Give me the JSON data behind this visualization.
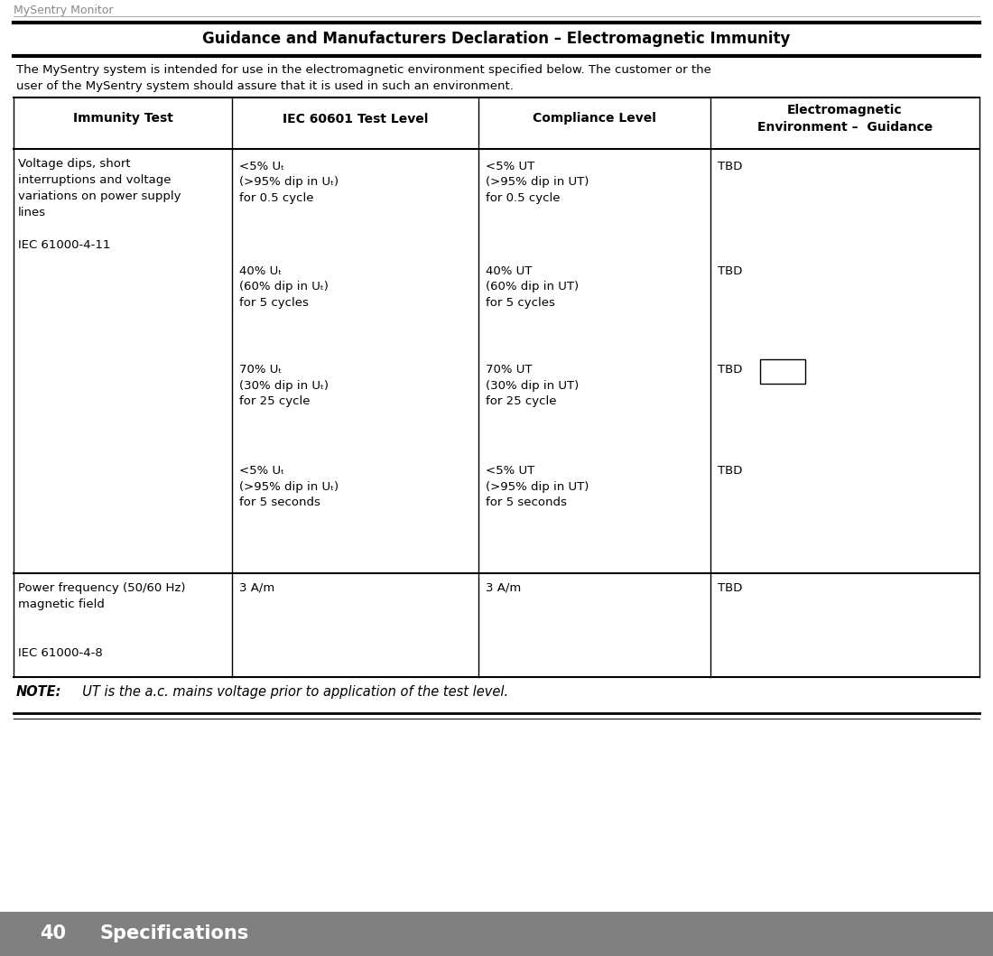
{
  "page_title": "MySentry Monitor",
  "section_title": "Guidance and Manufacturers Declaration – Electromagnetic Immunity",
  "intro_text": "The MySentry system is intended for use in the electromagnetic environment specified below. The customer or the\nuser of the MySentry system should assure that it is used in such an environment.",
  "col_headers": [
    "Immunity Test",
    "IEC 60601 Test Level",
    "Compliance Level",
    "Electromagnetic\nEnvironment –  Guidance"
  ],
  "rows_r1_col0": "Voltage dips, short\ninterruptions and voltage\nvariations on power supply\nlines\n\nIEC 61000-4-11",
  "rows_r1_col1": [
    "<5% UT\n(>95% dip in UT)\nfor 0.5 cycle",
    "40% UT\n(60% dip in UT)\nfor 5 cycles",
    "70% UT\n(30% dip in UT)\nfor 25 cycle",
    "<5% UT\n(>95% dip in UT)\nfor 5 seconds"
  ],
  "rows_r1_col2": [
    "<5% UT\n(>95% dip in UT)\nfor 0.5 cycle",
    "40% UT\n(60% dip in UT)\nfor 5 cycles",
    "70% UT\n(30% dip in UT)\nfor 25 cycle",
    "<5% UT\n(>95% dip in UT)\nfor 5 seconds"
  ],
  "rows_r1_col3": [
    "TBD",
    "TBD",
    "TBD",
    "TBD"
  ],
  "rows_r2_col0": "Power frequency (50/60 Hz)\nmagnetic field\n\n\nIEC 61000-4-8",
  "rows_r2_col1": "3 A/m",
  "rows_r2_col2": "3 A/m",
  "rows_r2_col3": "TBD",
  "note_bold": "NOTE:",
  "note_italic": "  UT is the a.c. mains voltage prior to application of the test level.",
  "footer_number": "40",
  "footer_text": "Specifications",
  "bg_color": "#ffffff",
  "footer_bg": "#808080",
  "footer_text_color": "#ffffff",
  "page_title_color": "#888888",
  "figsize": [
    11.0,
    10.59
  ],
  "dpi": 100
}
